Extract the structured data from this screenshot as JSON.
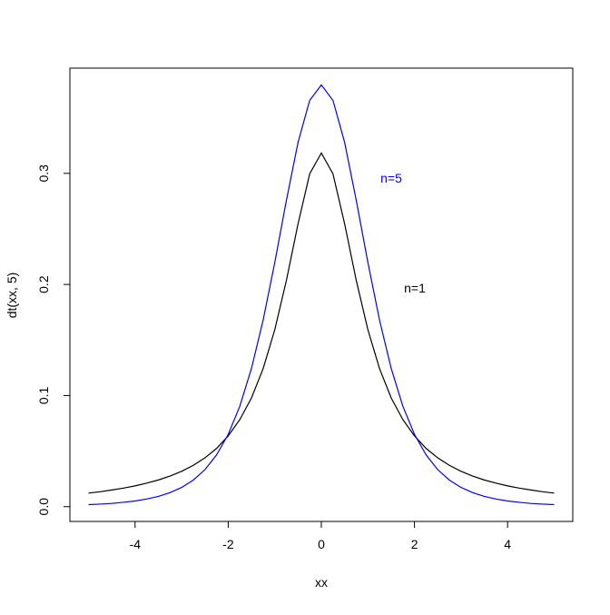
{
  "chart_data": {
    "type": "line",
    "x_label": "xx",
    "y_label": "dt(xx, 5)",
    "x": [
      -5,
      -4.75,
      -4.5,
      -4.25,
      -4,
      -3.75,
      -3.5,
      -3.25,
      -3,
      -2.75,
      -2.5,
      -2.25,
      -2,
      -1.75,
      -1.5,
      -1.25,
      -1,
      -0.75,
      -0.5,
      -0.25,
      0,
      0.25,
      0.5,
      0.75,
      1,
      1.25,
      1.5,
      1.75,
      2,
      2.25,
      2.5,
      2.75,
      3,
      3.25,
      3.5,
      3.75,
      4,
      4.25,
      4.5,
      4.75,
      5
    ],
    "series": [
      {
        "name": "n=1",
        "color": "#000000",
        "values": [
          0.0122,
          0.0134,
          0.015,
          0.0167,
          0.0187,
          0.0212,
          0.024,
          0.0275,
          0.0318,
          0.0372,
          0.0439,
          0.0524,
          0.0637,
          0.0784,
          0.0979,
          0.1242,
          0.1592,
          0.2037,
          0.2546,
          0.2996,
          0.3183,
          0.2996,
          0.2546,
          0.2037,
          0.1592,
          0.1242,
          0.0979,
          0.0784,
          0.0637,
          0.0524,
          0.0439,
          0.0372,
          0.0318,
          0.0275,
          0.024,
          0.0212,
          0.0187,
          0.0167,
          0.015,
          0.0134,
          0.0122
        ]
      },
      {
        "name": "n=5",
        "color": "#0000ff",
        "values": [
          0.0018,
          0.0023,
          0.0029,
          0.0039,
          0.0051,
          0.0069,
          0.0092,
          0.0126,
          0.0173,
          0.0239,
          0.0333,
          0.0466,
          0.0651,
          0.0905,
          0.1245,
          0.1679,
          0.2197,
          0.2757,
          0.3279,
          0.3657,
          0.3796,
          0.3657,
          0.3279,
          0.2757,
          0.2197,
          0.1679,
          0.1245,
          0.0905,
          0.0651,
          0.0466,
          0.0333,
          0.0239,
          0.0173,
          0.0126,
          0.0092,
          0.0069,
          0.0051,
          0.0039,
          0.0029,
          0.0023,
          0.0018
        ]
      }
    ],
    "xlim": [
      -5.4,
      5.4
    ],
    "ylim": [
      -0.0133,
      0.3947
    ],
    "xticks": [
      -4,
      -2,
      0,
      2,
      4
    ],
    "yticks": [
      {
        "value": 0,
        "label": "0.0"
      },
      {
        "value": 0.1,
        "label": "0.1"
      },
      {
        "value": 0.2,
        "label": "0.2"
      },
      {
        "value": 0.3,
        "label": "0.3"
      }
    ]
  }
}
